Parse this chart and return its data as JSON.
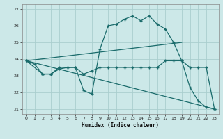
{
  "xlabel": "Humidex (Indice chaleur)",
  "background_color": "#cce8e8",
  "grid_color": "#aacece",
  "line_color": "#1a6b6b",
  "xlim": [
    -0.5,
    23.5
  ],
  "ylim": [
    20.7,
    27.3
  ],
  "yticks": [
    21,
    22,
    23,
    24,
    25,
    26,
    27
  ],
  "xticks": [
    0,
    1,
    2,
    3,
    4,
    5,
    6,
    7,
    8,
    9,
    10,
    11,
    12,
    13,
    14,
    15,
    16,
    17,
    18,
    19,
    20,
    21,
    22,
    23
  ],
  "line1_x": [
    0,
    1,
    2,
    3,
    4,
    5,
    6,
    7,
    8,
    9,
    10,
    11,
    12,
    13,
    14,
    15,
    16,
    17,
    18,
    19,
    20,
    21,
    22,
    23
  ],
  "line1_y": [
    23.9,
    23.7,
    23.1,
    23.1,
    23.5,
    23.5,
    23.5,
    22.1,
    21.9,
    24.6,
    26.0,
    26.1,
    26.4,
    26.6,
    26.3,
    26.6,
    26.1,
    25.8,
    25.0,
    23.9,
    22.3,
    21.5,
    21.1,
    21.0
  ],
  "line2_x": [
    0,
    2,
    3,
    4,
    5,
    6,
    7,
    8,
    9,
    10,
    11,
    12,
    13,
    14,
    15,
    16,
    17,
    18,
    19,
    20,
    21,
    22,
    23
  ],
  "line2_y": [
    23.9,
    23.1,
    23.1,
    23.4,
    23.5,
    23.5,
    23.1,
    23.3,
    23.5,
    23.5,
    23.5,
    23.5,
    23.5,
    23.5,
    23.5,
    23.5,
    23.9,
    23.9,
    23.9,
    23.5,
    23.5,
    23.5,
    21.0
  ],
  "line3_x": [
    0,
    23
  ],
  "line3_y": [
    23.9,
    21.0
  ],
  "line4_x": [
    0,
    19
  ],
  "line4_y": [
    23.9,
    25.0
  ]
}
